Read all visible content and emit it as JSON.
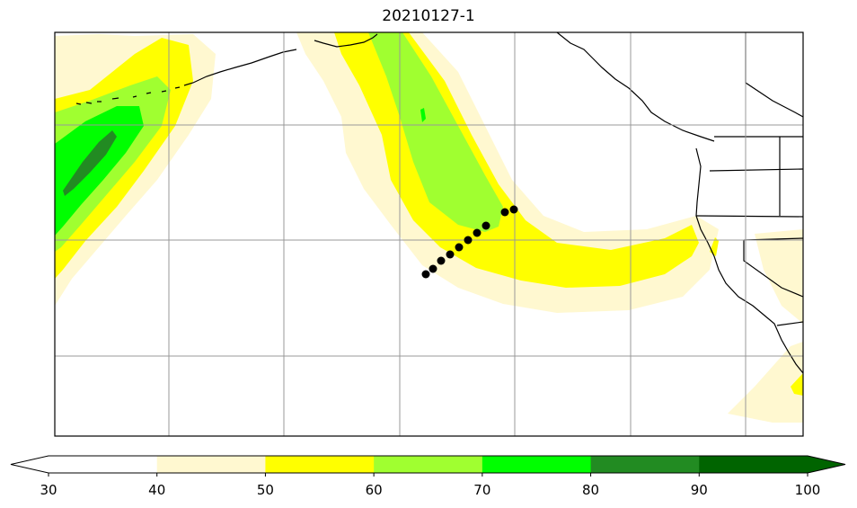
{
  "title": "20210127-1",
  "colorbar": {
    "ticks": [
      "30",
      "40",
      "50",
      "60",
      "70",
      "80",
      "90",
      "100"
    ],
    "levels": [
      30,
      40,
      50,
      60,
      70,
      80,
      90,
      100
    ],
    "colors": [
      "#ffffff",
      "#fff8d0",
      "#ffff00",
      "#a0ff30",
      "#00ff00",
      "#228b22",
      "#006400"
    ],
    "extend": "both"
  },
  "map": {
    "projection": "PlateCarree",
    "coastlines": true,
    "state_borders": true,
    "gridlines": true,
    "region": "North Pacific and North American west coast"
  },
  "observation_points": {
    "marker_color": "#000000",
    "count": 11
  }
}
